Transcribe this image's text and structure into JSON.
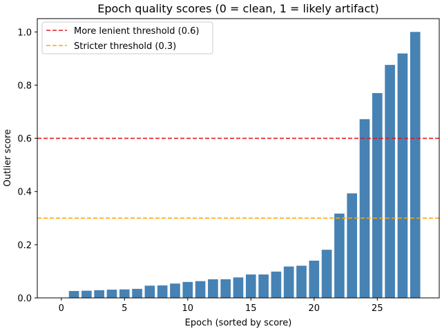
{
  "chart_data": {
    "type": "bar",
    "title": "Epoch quality scores (0 = clean, 1 = likely artifact)",
    "xlabel": "Epoch (sorted by score)",
    "ylabel": "Outlier score",
    "xlim": [
      -1.9,
      29.9
    ],
    "ylim": [
      0,
      1.05
    ],
    "xticks": [
      0,
      5,
      10,
      15,
      20,
      25
    ],
    "yticks": [
      0.0,
      0.2,
      0.4,
      0.6,
      0.8,
      1.0
    ],
    "xtick_labels": [
      "0",
      "5",
      "10",
      "15",
      "20",
      "25"
    ],
    "ytick_labels": [
      "0.0",
      "0.2",
      "0.4",
      "0.6",
      "0.8",
      "1.0"
    ],
    "x": [
      1,
      2,
      3,
      4,
      5,
      6,
      7,
      8,
      9,
      10,
      11,
      12,
      13,
      14,
      15,
      16,
      17,
      18,
      19,
      20,
      21,
      22,
      23,
      24,
      25,
      26,
      27,
      28
    ],
    "values": [
      0.026,
      0.027,
      0.029,
      0.031,
      0.032,
      0.034,
      0.046,
      0.047,
      0.054,
      0.06,
      0.063,
      0.07,
      0.07,
      0.077,
      0.088,
      0.088,
      0.099,
      0.118,
      0.121,
      0.14,
      0.181,
      0.317,
      0.393,
      0.672,
      0.77,
      0.876,
      0.919,
      1.0
    ],
    "bar_color": "#4682b4",
    "grid": false,
    "legend_position": "top-left",
    "reference_lines": [
      {
        "label": "More lenient threshold (0.6)",
        "y": 0.6,
        "color": "#e41a1c",
        "style": "dashed"
      },
      {
        "label": "Stricter threshold (0.3)",
        "y": 0.3,
        "color": "#ffa500",
        "style": "dashed"
      }
    ]
  }
}
